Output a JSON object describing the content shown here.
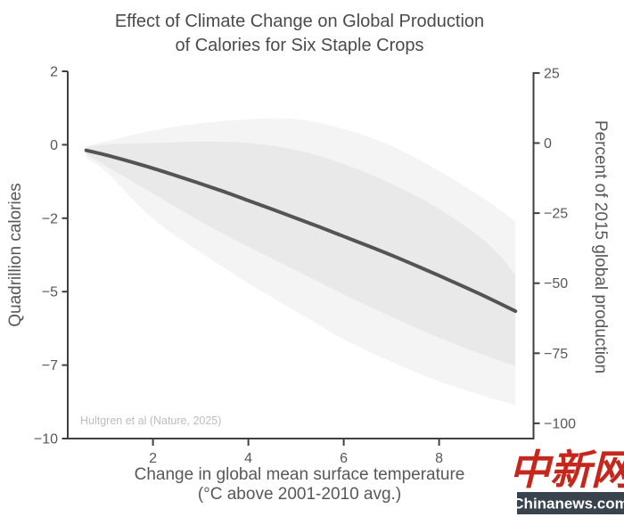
{
  "title": {
    "line1": "Effect of Climate Change on Global Production",
    "line2": "of Calories for Six Staple Crops"
  },
  "x_axis": {
    "title_line1": "Change in global mean surface temperature",
    "title_line2": "(°C above 2001-2010 avg.)",
    "ticks": [
      "2",
      "4",
      "6",
      "8"
    ]
  },
  "y_axis_left": {
    "title": "Quadrillion calories",
    "ticks": [
      "2",
      "0",
      "−2",
      "−5",
      "−7",
      "−10"
    ]
  },
  "y_axis_right": {
    "title": "Percent of 2015 global production",
    "ticks": [
      "25",
      "0",
      "−25",
      "−50",
      "−75",
      "−100"
    ]
  },
  "annotation": "Hultgren et al (Nature, 2025)",
  "watermark": {
    "chinese": "中新网",
    "domain": "Chinanews.com",
    "red": "#c5271d",
    "banner_bg": "#39434d"
  },
  "colors": {
    "line": "#545456",
    "band_inner": "#e9e9e9",
    "band_outer": "#f4f4f4",
    "spine": "#404040",
    "tick_text": "#58585a",
    "title_text": "#4b4b4d",
    "annotation_text": "#bdbdbd"
  },
  "chart_data": {
    "type": "line",
    "title": "Effect of Climate Change on Global Production of Calories for Six Staple Crops",
    "xlabel": "Change in global mean surface temperature (°C above 2001-2010 avg.)",
    "ylabel_left": "Quadrillion calories",
    "ylabel_right": "Percent of 2015 global production",
    "source": "Hultgren et al (Nature, 2025)",
    "grid": false,
    "legend": "none",
    "x_range": [
      0.2,
      10
    ],
    "right_axis_range_percent": [
      -105,
      27
    ],
    "x_ticks": [
      2,
      4,
      6,
      8
    ],
    "left_tick_values_quadrillion": [
      2,
      0,
      -2,
      -5,
      -7,
      -10
    ],
    "right_tick_values_percent": [
      25,
      0,
      -25,
      -50,
      -75,
      -100
    ],
    "line": {
      "name": "central estimate",
      "x": [
        0.6,
        1,
        1.5,
        2,
        2.5,
        3,
        3.5,
        4,
        4.5,
        5,
        5.5,
        6,
        6.5,
        7,
        7.5,
        8,
        8.5,
        9,
        9.6
      ],
      "percent_of_2015": [
        -2.6,
        -4.2,
        -6.5,
        -9,
        -11.7,
        -14.5,
        -17.4,
        -20.5,
        -23.6,
        -26.8,
        -30,
        -33.3,
        -36.6,
        -40,
        -43.6,
        -47.3,
        -51.1,
        -55,
        -60
      ],
      "quadrillion_calories": [
        -0.24,
        -0.39,
        -0.6,
        -0.83,
        -1.08,
        -1.33,
        -1.6,
        -1.89,
        -2.17,
        -2.47,
        -2.76,
        -3.06,
        -3.37,
        -3.68,
        -4.01,
        -4.35,
        -4.7,
        -5.06,
        -5.52
      ]
    },
    "bands": [
      {
        "name": "outer confidence band",
        "fill": "#f4f4f4",
        "x": [
          0.6,
          1,
          2,
          3,
          4,
          5,
          6,
          7,
          8,
          9,
          9.6
        ],
        "upper_percent": [
          -1,
          0.5,
          4.5,
          7,
          8.5,
          8.5,
          5,
          -1,
          -10,
          -20.5,
          -28
        ],
        "lower_percent": [
          -5.5,
          -10,
          -27,
          -39,
          -50,
          -60,
          -70,
          -78,
          -85,
          -90.5,
          -93.5
        ]
      },
      {
        "name": "inner confidence band",
        "fill": "#e9e9e9",
        "x": [
          0.6,
          1,
          2,
          3,
          4,
          5,
          6,
          7,
          8,
          9,
          9.6
        ],
        "upper_percent": [
          -1.5,
          -0.5,
          0,
          0.5,
          0,
          -2.5,
          -7.5,
          -14.5,
          -23.5,
          -35.5,
          -47
        ],
        "lower_percent": [
          -4,
          -8,
          -18,
          -28,
          -37,
          -45.5,
          -54,
          -62,
          -69.5,
          -76,
          -79.5
        ]
      }
    ]
  }
}
